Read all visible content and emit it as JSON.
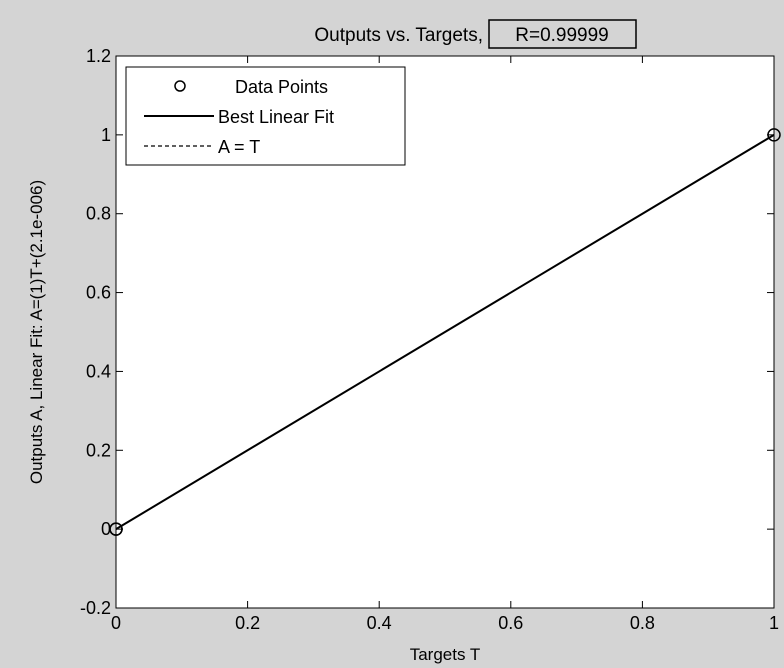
{
  "chart_data": {
    "type": "line",
    "title": "Outputs vs. Targets,",
    "title_r": "R=0.99999",
    "xlabel": "Targets T",
    "ylabel": "Outputs A,  Linear Fit: A=(1)T+(2.1e-006)",
    "xlim": [
      0,
      1
    ],
    "ylim": [
      -0.2,
      1.2
    ],
    "xticks": [
      0,
      0.2,
      0.4,
      0.6,
      0.8,
      1
    ],
    "xtick_labels": [
      "0",
      "0.2",
      "0.4",
      "0.6",
      "0.8",
      "1"
    ],
    "yticks": [
      -0.2,
      0,
      0.2,
      0.4,
      0.6,
      0.8,
      1,
      1.2
    ],
    "ytick_labels": [
      "-0.2",
      "0",
      "0.2",
      "0.4",
      "0.6",
      "0.8",
      "1",
      "1.2"
    ],
    "grid": false,
    "legend_position": "top-left",
    "series": [
      {
        "name": "Data Points",
        "style": "markers",
        "marker": "circle",
        "color": "#000000",
        "x": [
          0,
          0,
          1
        ],
        "y": [
          0,
          0,
          1
        ]
      },
      {
        "name": "Best Linear Fit",
        "style": "solid",
        "color": "#000000",
        "x": [
          0,
          1
        ],
        "y": [
          2.1e-06,
          1.0000021
        ]
      },
      {
        "name": "A = T",
        "style": "dashed",
        "color": "#000000",
        "x": [
          0,
          1
        ],
        "y": [
          0,
          1
        ]
      }
    ]
  },
  "colors": {
    "figure_background": "#d4d4d4",
    "axes_background": "#ffffff",
    "line": "#000000"
  }
}
